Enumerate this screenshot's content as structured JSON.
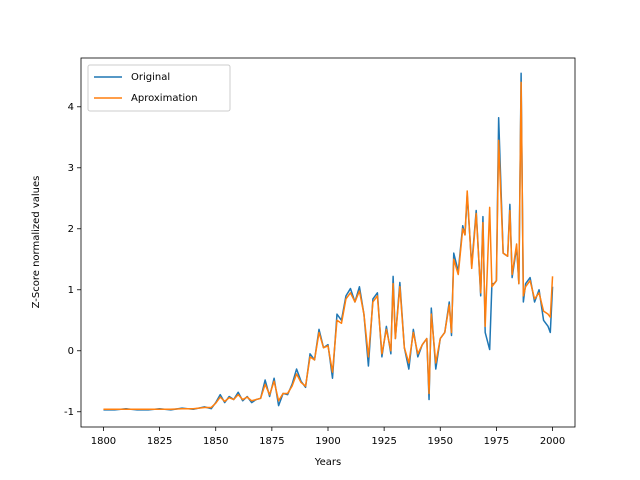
{
  "chart_data": {
    "type": "line",
    "xlabel": "Years",
    "ylabel": "Z-Score normalized values",
    "x": [
      1800,
      1805,
      1810,
      1815,
      1820,
      1825,
      1830,
      1835,
      1840,
      1845,
      1848,
      1850,
      1852,
      1854,
      1856,
      1858,
      1860,
      1862,
      1864,
      1866,
      1868,
      1870,
      1872,
      1874,
      1876,
      1878,
      1880,
      1882,
      1884,
      1886,
      1888,
      1890,
      1892,
      1894,
      1896,
      1898,
      1900,
      1902,
      1904,
      1906,
      1908,
      1910,
      1912,
      1914,
      1916,
      1918,
      1920,
      1922,
      1924,
      1926,
      1928,
      1929,
      1930,
      1932,
      1934,
      1936,
      1938,
      1940,
      1942,
      1944,
      1945,
      1946,
      1948,
      1950,
      1952,
      1954,
      1955,
      1956,
      1958,
      1960,
      1961,
      1962,
      1964,
      1966,
      1968,
      1969,
      1970,
      1972,
      1973,
      1974,
      1975,
      1976,
      1978,
      1980,
      1981,
      1982,
      1984,
      1985,
      1986,
      1987,
      1988,
      1990,
      1992,
      1994,
      1996,
      1998,
      1999,
      2000
    ],
    "series": [
      {
        "name": "Original",
        "color": "#1f77b4",
        "values": [
          -0.97,
          -0.97,
          -0.95,
          -0.97,
          -0.97,
          -0.95,
          -0.97,
          -0.94,
          -0.96,
          -0.92,
          -0.95,
          -0.85,
          -0.72,
          -0.85,
          -0.75,
          -0.8,
          -0.68,
          -0.82,
          -0.75,
          -0.85,
          -0.8,
          -0.78,
          -0.48,
          -0.75,
          -0.45,
          -0.9,
          -0.7,
          -0.72,
          -0.55,
          -0.3,
          -0.5,
          -0.6,
          -0.05,
          -0.15,
          0.35,
          0.05,
          0.1,
          -0.45,
          0.6,
          0.5,
          0.9,
          1.02,
          0.8,
          1.05,
          0.6,
          -0.25,
          0.85,
          0.95,
          -0.1,
          0.4,
          -0.05,
          1.22,
          0.2,
          1.12,
          0.05,
          -0.3,
          0.35,
          -0.1,
          0.1,
          0.2,
          -0.8,
          0.7,
          -0.3,
          0.2,
          0.3,
          0.8,
          0.25,
          1.6,
          1.3,
          2.05,
          1.9,
          2.55,
          1.4,
          2.3,
          0.9,
          2.2,
          0.3,
          0.02,
          1.1,
          1.1,
          1.15,
          3.82,
          1.6,
          1.55,
          2.4,
          1.2,
          1.7,
          1.1,
          4.55,
          0.8,
          1.1,
          1.2,
          0.8,
          1.0,
          0.5,
          0.4,
          0.3,
          1.05
        ]
      },
      {
        "name": "Aproximation",
        "color": "#ff7f0e",
        "values": [
          -0.96,
          -0.96,
          -0.96,
          -0.96,
          -0.96,
          -0.96,
          -0.96,
          -0.95,
          -0.95,
          -0.93,
          -0.93,
          -0.86,
          -0.76,
          -0.83,
          -0.77,
          -0.8,
          -0.72,
          -0.8,
          -0.76,
          -0.82,
          -0.8,
          -0.78,
          -0.55,
          -0.72,
          -0.5,
          -0.82,
          -0.7,
          -0.7,
          -0.58,
          -0.38,
          -0.52,
          -0.58,
          -0.1,
          -0.15,
          0.3,
          0.05,
          0.08,
          -0.35,
          0.5,
          0.45,
          0.85,
          0.95,
          0.8,
          0.98,
          0.6,
          -0.1,
          0.8,
          0.9,
          -0.05,
          0.35,
          0.0,
          1.1,
          0.2,
          1.05,
          0.05,
          -0.2,
          0.3,
          -0.05,
          0.1,
          0.2,
          -0.7,
          0.6,
          -0.2,
          0.2,
          0.3,
          0.75,
          0.3,
          1.5,
          1.25,
          2.0,
          1.9,
          2.62,
          1.35,
          2.25,
          0.95,
          2.1,
          0.4,
          2.35,
          1.05,
          1.1,
          1.15,
          3.45,
          1.6,
          1.55,
          2.3,
          1.25,
          1.75,
          1.1,
          4.4,
          0.9,
          1.05,
          1.15,
          0.85,
          0.95,
          0.65,
          0.6,
          0.55,
          1.22
        ]
      }
    ],
    "xlim": [
      1790,
      2010
    ],
    "ylim": [
      -1.25,
      4.8
    ],
    "xticks": [
      1800,
      1825,
      1850,
      1875,
      1900,
      1925,
      1950,
      1975,
      2000
    ],
    "yticks": [
      -1,
      0,
      1,
      2,
      3,
      4
    ],
    "legend": "upper left"
  }
}
